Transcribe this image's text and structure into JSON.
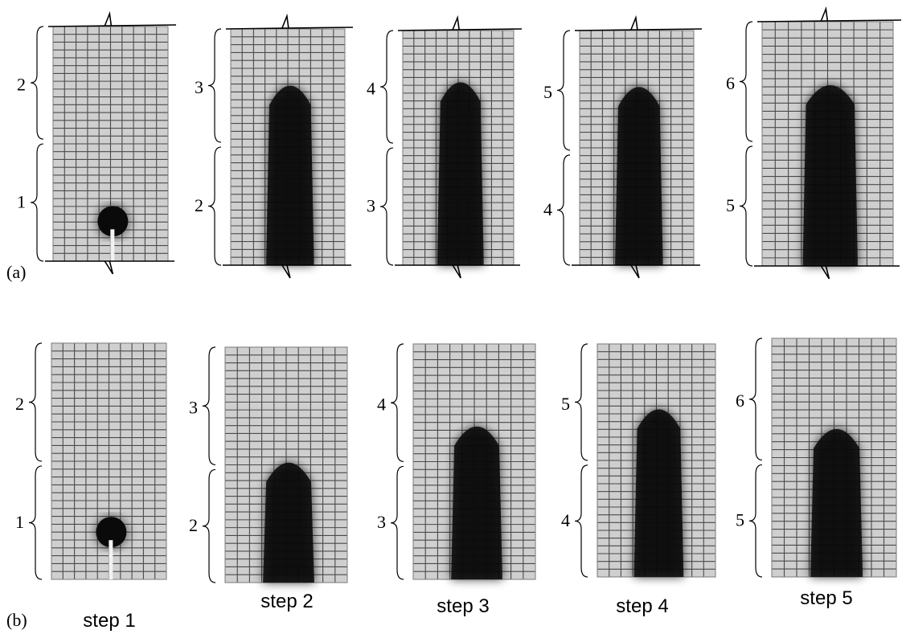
{
  "rows": [
    {
      "label": "(a)",
      "panels": [
        {
          "upper_label": "2",
          "lower_label": "1",
          "shape": "ball",
          "fill_top": 0.83
        },
        {
          "upper_label": "3",
          "lower_label": "2",
          "shape": "column",
          "fill_top": 0.22
        },
        {
          "upper_label": "4",
          "lower_label": "3",
          "shape": "column",
          "fill_top": 0.2
        },
        {
          "upper_label": "5",
          "lower_label": "4",
          "shape": "column",
          "fill_top": 0.22
        },
        {
          "upper_label": "6",
          "lower_label": "5",
          "shape": "column",
          "fill_top": 0.24
        }
      ]
    },
    {
      "label": "(b)",
      "panels": [
        {
          "upper_label": "2",
          "lower_label": "1",
          "shape": "ball",
          "fill_top": 0.8
        },
        {
          "upper_label": "3",
          "lower_label": "2",
          "shape": "column",
          "fill_top": 0.47
        },
        {
          "upper_label": "4",
          "lower_label": "3",
          "shape": "column",
          "fill_top": 0.33
        },
        {
          "upper_label": "5",
          "lower_label": "4",
          "shape": "column",
          "fill_top": 0.26
        },
        {
          "upper_label": "6",
          "lower_label": "5",
          "shape": "column",
          "fill_top": 0.36
        }
      ]
    }
  ],
  "steps": [
    "step 1",
    "step 2",
    "step 3",
    "step 4",
    "step 5"
  ]
}
